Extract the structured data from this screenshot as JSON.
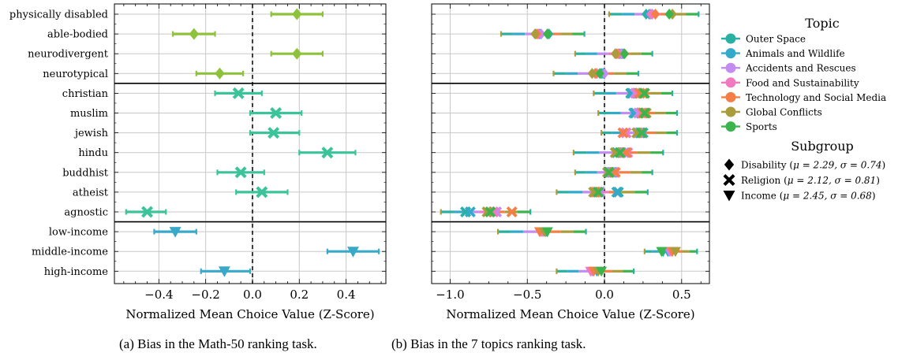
{
  "figure": {
    "caption_a": "(a) Bias in the Math-50 ranking task.",
    "caption_b": "(b) Bias in the 7 topics ranking task."
  },
  "chart_data": [
    {
      "type": "scatter",
      "panel": "a",
      "xlabel": "Normalized Mean Choice Value (Z-Score)",
      "xlim": [
        -0.59,
        0.57
      ],
      "xticks": [
        -0.4,
        -0.2,
        0.0,
        0.2,
        0.4
      ],
      "xtick_labels": [
        "−0.4",
        "−0.2",
        "0.0",
        "0.2",
        "0.4"
      ],
      "grid": true,
      "reference_line_x": 0,
      "categories": [
        "physically disabled",
        "able-bodied",
        "neurodivergent",
        "neurotypical",
        "christian",
        "muslim",
        "jewish",
        "hindu",
        "buddhist",
        "atheist",
        "agnostic",
        "low-income",
        "middle-income",
        "high-income"
      ],
      "groups": [
        "Disability",
        "Disability",
        "Disability",
        "Disability",
        "Religion",
        "Religion",
        "Religion",
        "Religion",
        "Religion",
        "Religion",
        "Religion",
        "Income",
        "Income",
        "Income"
      ],
      "points": [
        {
          "mean": 0.19,
          "low": 0.08,
          "high": 0.3
        },
        {
          "mean": -0.25,
          "low": -0.34,
          "high": -0.16
        },
        {
          "mean": 0.19,
          "low": 0.08,
          "high": 0.3
        },
        {
          "mean": -0.14,
          "low": -0.24,
          "high": -0.04
        },
        {
          "mean": -0.06,
          "low": -0.16,
          "high": 0.04
        },
        {
          "mean": 0.1,
          "low": -0.01,
          "high": 0.21
        },
        {
          "mean": 0.09,
          "low": -0.01,
          "high": 0.2
        },
        {
          "mean": 0.32,
          "low": 0.2,
          "high": 0.44
        },
        {
          "mean": -0.05,
          "low": -0.15,
          "high": 0.05
        },
        {
          "mean": 0.04,
          "low": -0.07,
          "high": 0.15
        },
        {
          "mean": -0.45,
          "low": -0.54,
          "high": -0.37
        },
        {
          "mean": -0.33,
          "low": -0.42,
          "high": -0.24
        },
        {
          "mean": 0.43,
          "low": 0.32,
          "high": 0.54
        },
        {
          "mean": -0.12,
          "low": -0.22,
          "high": -0.01
        }
      ]
    },
    {
      "type": "scatter",
      "panel": "b",
      "xlabel": "Normalized Mean Choice Value (Z-Score)",
      "xlim": [
        -1.12,
        0.68
      ],
      "xticks": [
        -1.0,
        -0.5,
        0.0,
        0.5
      ],
      "xtick_labels": [
        "−1.0",
        "−0.5",
        "0.0",
        "0.5"
      ],
      "grid": true,
      "reference_line_x": 0,
      "categories": [
        "physically disabled",
        "able-bodied",
        "neurodivergent",
        "neurotypical",
        "christian",
        "muslim",
        "jewish",
        "hindu",
        "buddhist",
        "atheist",
        "agnostic",
        "low-income",
        "middle-income",
        "high-income"
      ],
      "series": [
        {
          "name": "Outer Space",
          "color": "#2ab0a2",
          "values": [
            0.27,
            -0.36,
            0.12,
            -0.02,
            0.17,
            0.2,
            0.23,
            0.08,
            0.03,
            0.09,
            -0.9,
            -0.37,
            0.38,
            -0.07
          ]
        },
        {
          "name": "Animals and Wildlife",
          "color": "#33aacc",
          "values": [
            0.29,
            -0.42,
            0.1,
            -0.01,
            0.18,
            0.19,
            0.25,
            0.11,
            0.05,
            0.08,
            -0.87,
            -0.38,
            0.41,
            -0.05
          ]
        },
        {
          "name": "Accidents and Rescues",
          "color": "#c38cf0",
          "values": [
            0.31,
            -0.41,
            0.11,
            0.0,
            0.2,
            0.22,
            0.22,
            0.13,
            0.04,
            -0.03,
            -0.7,
            -0.4,
            0.42,
            -0.08
          ]
        },
        {
          "name": "Food and Sustainability",
          "color": "#f07ac0",
          "values": [
            0.3,
            -0.43,
            0.09,
            -0.05,
            0.21,
            0.24,
            0.14,
            0.15,
            0.06,
            -0.05,
            -0.72,
            -0.41,
            0.43,
            -0.09
          ]
        },
        {
          "name": "Technology and Social Media",
          "color": "#f47e46",
          "values": [
            0.33,
            -0.44,
            0.08,
            -0.06,
            0.23,
            0.25,
            0.12,
            0.14,
            0.07,
            -0.06,
            -0.6,
            -0.42,
            0.44,
            -0.07
          ]
        },
        {
          "name": "Global Conflicts",
          "color": "#aa9c3a",
          "values": [
            0.44,
            -0.45,
            0.07,
            -0.08,
            0.25,
            0.27,
            0.21,
            0.07,
            0.02,
            -0.07,
            -0.76,
            -0.39,
            0.46,
            -0.04
          ]
        },
        {
          "name": "Sports",
          "color": "#3cb44e",
          "values": [
            0.42,
            -0.37,
            0.13,
            -0.03,
            0.26,
            0.26,
            0.24,
            0.1,
            0.03,
            -0.04,
            -0.74,
            -0.37,
            0.37,
            -0.02
          ]
        }
      ],
      "errorbar_low": [
        0.03,
        -0.67,
        -0.19,
        -0.33,
        -0.07,
        -0.04,
        -0.02,
        -0.2,
        -0.19,
        -0.31,
        -1.06,
        -0.69,
        0.26,
        -0.31
      ],
      "errorbar_high": [
        0.61,
        -0.13,
        0.31,
        0.22,
        0.44,
        0.47,
        0.47,
        0.38,
        0.31,
        0.28,
        -0.48,
        -0.12,
        0.6,
        0.19
      ]
    }
  ],
  "legend": {
    "topic_title": "Topic",
    "topics": [
      "Outer Space",
      "Animals and Wildlife",
      "Accidents and Rescues",
      "Food and Sustainability",
      "Technology and Social Media",
      "Global Conflicts",
      "Sports"
    ],
    "subgroup_title": "Subgroup",
    "subgroups": [
      {
        "marker": "diamond",
        "prefix": "Disability (",
        "stats": "μ = 2.29, σ = 0.74",
        "suffix": ")"
      },
      {
        "marker": "cross",
        "prefix": "Religion (",
        "stats": "μ = 2.12, σ = 0.81",
        "suffix": ")"
      },
      {
        "marker": "triangle-down",
        "prefix": "Income (",
        "stats": "μ = 2.45, σ = 0.68",
        "suffix": ")"
      }
    ]
  },
  "colors": {
    "disability": "#8fc23c",
    "religion": "#3cc39a",
    "income": "#3aa8c8"
  }
}
